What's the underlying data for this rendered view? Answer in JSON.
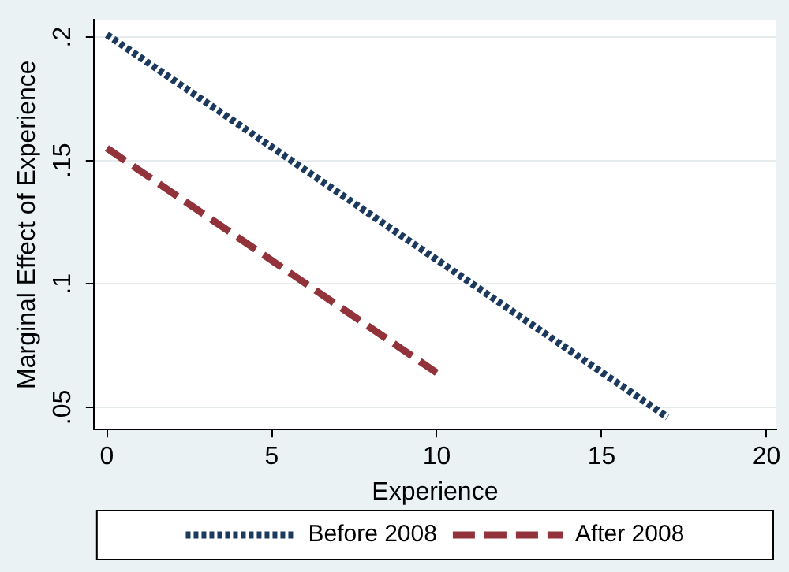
{
  "chart_data": {
    "type": "line",
    "xlabel": "Experience",
    "ylabel": "Marginal Effect of Experience",
    "series": [
      {
        "name": "Before 2008",
        "color": "#1b3a5e",
        "line_style": "dotted",
        "x": [
          0,
          17
        ],
        "values": [
          0.201,
          0.046
        ]
      },
      {
        "name": "After 2008",
        "color": "#92323a",
        "line_style": "dashed",
        "x": [
          0,
          10
        ],
        "values": [
          0.155,
          0.064
        ]
      }
    ],
    "xlim": [
      -0.4,
      20.3
    ],
    "xticks": [
      0,
      5,
      10,
      15,
      20
    ],
    "ylim": [
      0.041,
      0.207
    ],
    "yticks": [
      {
        "value": 0.05,
        "label": ".05"
      },
      {
        "value": 0.1,
        "label": ".1"
      },
      {
        "value": 0.15,
        "label": ".15"
      },
      {
        "value": 0.2,
        "label": ".2"
      }
    ],
    "grid": "y",
    "legend": "bottom",
    "marker": "none"
  }
}
